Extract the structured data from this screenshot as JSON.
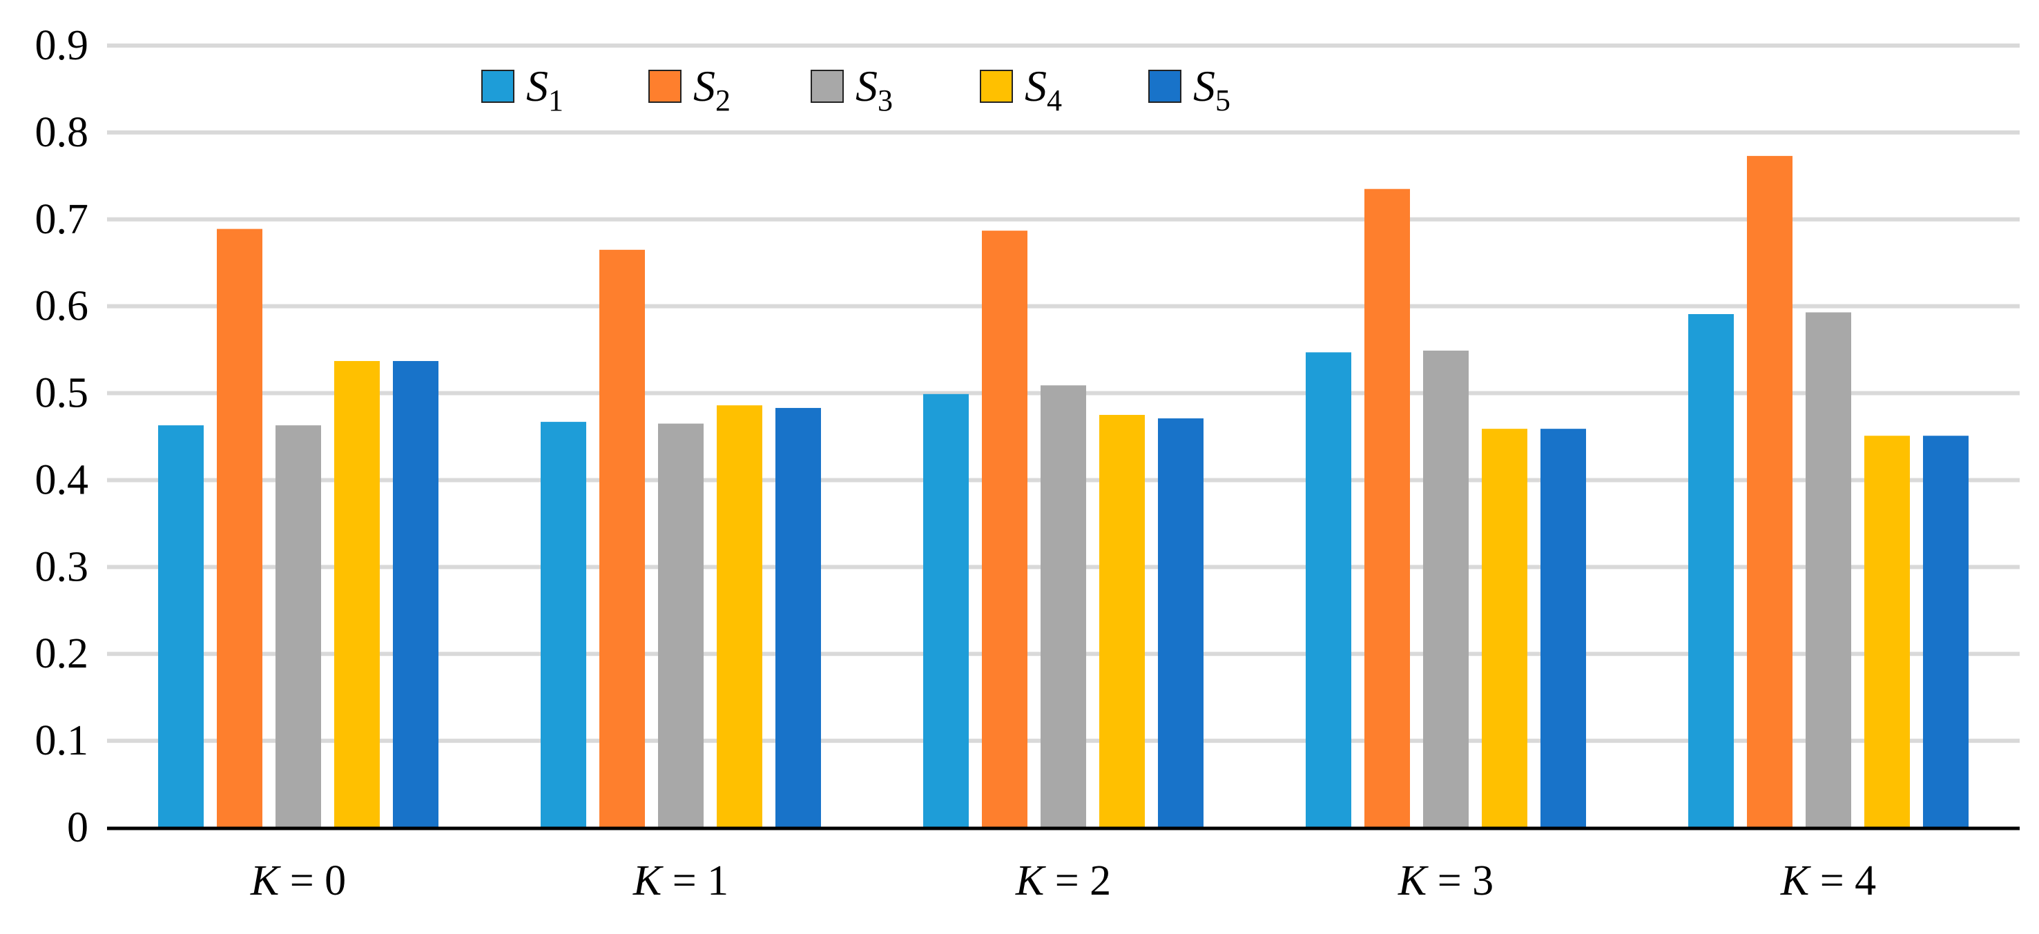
{
  "chart_data": {
    "type": "bar",
    "title": "",
    "xlabel": "",
    "ylabel": "",
    "categories": [
      {
        "var": "K",
        "eq": " = ",
        "value": "0"
      },
      {
        "var": "K",
        "eq": " = ",
        "value": "1"
      },
      {
        "var": "K",
        "eq": " = ",
        "value": "2"
      },
      {
        "var": "K",
        "eq": " = ",
        "value": "3"
      },
      {
        "var": "K",
        "eq": " = ",
        "value": "4"
      }
    ],
    "yticks": [
      "0",
      "0.1",
      "0.2",
      "0.3",
      "0.4",
      "0.5",
      "0.6",
      "0.7",
      "0.8",
      "0.9"
    ],
    "ylim": [
      0,
      0.9
    ],
    "grid": true,
    "legend_position": "top",
    "series": [
      {
        "name": "S1",
        "symbol": "S",
        "subscript": "1",
        "color": "#1e9dd8",
        "values": [
          0.463,
          0.467,
          0.499,
          0.547,
          0.591
        ]
      },
      {
        "name": "S2",
        "symbol": "S",
        "subscript": "2",
        "color": "#fe7f2d",
        "values": [
          0.689,
          0.665,
          0.687,
          0.735,
          0.773
        ]
      },
      {
        "name": "S3",
        "symbol": "S",
        "subscript": "3",
        "color": "#a8a8a8",
        "values": [
          0.463,
          0.465,
          0.509,
          0.549,
          0.593
        ]
      },
      {
        "name": "S4",
        "symbol": "S",
        "subscript": "4",
        "color": "#ffc000",
        "values": [
          0.537,
          0.486,
          0.475,
          0.459,
          0.451
        ]
      },
      {
        "name": "S5",
        "symbol": "S",
        "subscript": "5",
        "color": "#1873c9",
        "values": [
          0.537,
          0.483,
          0.471,
          0.459,
          0.451
        ]
      }
    ]
  }
}
